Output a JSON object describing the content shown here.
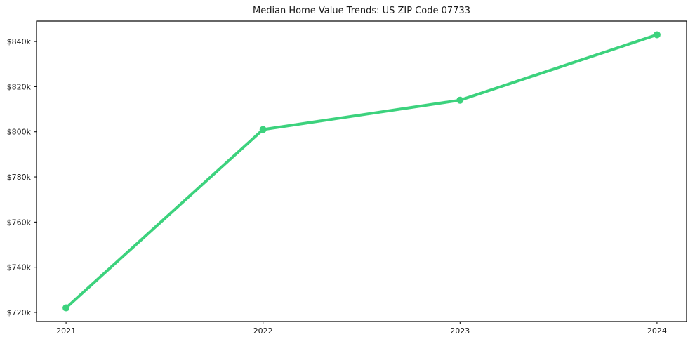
{
  "page": {
    "background": "#ffffff"
  },
  "chart_data": {
    "type": "line",
    "title": "Median Home Value Trends: US ZIP Code 07733",
    "categories": [
      "2021",
      "2022",
      "2023",
      "2024"
    ],
    "values": [
      722000,
      801000,
      814000,
      843000
    ],
    "xlabel": "",
    "ylabel": "",
    "ylim": [
      715950,
      849050
    ],
    "y_ticks": [
      {
        "value": 720000,
        "label": "$720k"
      },
      {
        "value": 740000,
        "label": "$740k"
      },
      {
        "value": 760000,
        "label": "$760k"
      },
      {
        "value": 780000,
        "label": "$780k"
      },
      {
        "value": 800000,
        "label": "$800k"
      },
      {
        "value": 820000,
        "label": "$820k"
      },
      {
        "value": 840000,
        "label": "$840k"
      }
    ],
    "grid": false,
    "legend": false,
    "marker": "circle",
    "line_color": "#3cd27d",
    "frame_color": "#000000",
    "text_color": "#1a1a1a"
  }
}
